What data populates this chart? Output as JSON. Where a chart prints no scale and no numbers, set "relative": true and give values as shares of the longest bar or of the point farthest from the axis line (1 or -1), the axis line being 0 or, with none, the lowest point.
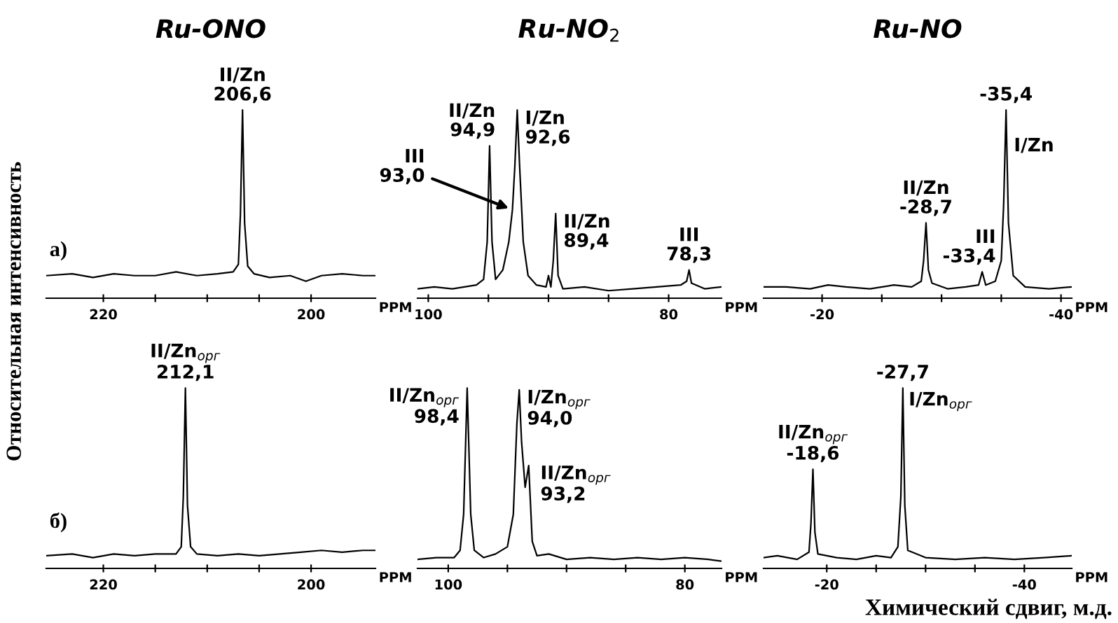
{
  "chart_data": [
    {
      "type": "line",
      "title": "Ru-ONO",
      "ylabel": "Относительная интенсивность",
      "xlabel": "PPM",
      "relative": true,
      "color": "#000000",
      "xlim": [
        225.5,
        193.8
      ],
      "xticks": [
        220,
        {
          "value": 215,
          "label": null
        },
        {
          "value": 210,
          "label": null
        },
        {
          "value": 205,
          "label": null
        },
        200
      ],
      "x": [
        225.5,
        223,
        221,
        219,
        217,
        215,
        213,
        211,
        209,
        207.5,
        207,
        206.8,
        206.6,
        206.4,
        206.1,
        205.5,
        204,
        202,
        200.5,
        199,
        197,
        195,
        193.8
      ],
      "values": [
        0.12,
        0.13,
        0.11,
        0.13,
        0.12,
        0.12,
        0.14,
        0.12,
        0.13,
        0.14,
        0.18,
        0.45,
        1.0,
        0.4,
        0.17,
        0.13,
        0.11,
        0.12,
        0.09,
        0.12,
        0.13,
        0.12,
        0.12
      ],
      "annotations": [
        {
          "text": "II/Zn\n206,6",
          "x": 206.6,
          "y": 1.0
        },
        "а)"
      ]
    },
    {
      "type": "line",
      "title": "Ru-NO$_{2}$",
      "xlabel": "PPM",
      "relative": true,
      "color": "#000000",
      "xlim": [
        100.9,
        75.6
      ],
      "xticks": [
        100,
        {
          "value": 95,
          "label": null
        },
        {
          "value": 90,
          "label": null
        },
        {
          "value": 85,
          "label": null
        },
        80
      ],
      "x": [
        100.9,
        99.5,
        98,
        97,
        96,
        95.4,
        95.1,
        94.9,
        94.7,
        94.4,
        93.8,
        93.3,
        93.0,
        92.8,
        92.6,
        92.4,
        92.1,
        91.7,
        91,
        90.2,
        90.0,
        89.8,
        89.6,
        89.4,
        89.2,
        88.8,
        87,
        85,
        83,
        81,
        79,
        78.5,
        78.3,
        78.1,
        77,
        75.6
      ],
      "values": [
        0.05,
        0.06,
        0.05,
        0.06,
        0.07,
        0.1,
        0.3,
        0.81,
        0.3,
        0.1,
        0.15,
        0.3,
        0.47,
        0.7,
        1.0,
        0.7,
        0.3,
        0.12,
        0.07,
        0.06,
        0.12,
        0.06,
        0.2,
        0.45,
        0.12,
        0.05,
        0.06,
        0.04,
        0.05,
        0.06,
        0.07,
        0.09,
        0.15,
        0.08,
        0.05,
        0.06
      ],
      "annotations": [
        {
          "text": "II/Zn\n94,9",
          "x": 94.9,
          "y": 0.81
        },
        {
          "text": "I/Zn\n92,6",
          "x": 92.6,
          "y": 1.0
        },
        {
          "text": "III\n93,0",
          "x": 93.0,
          "y": 0.47
        },
        {
          "text": "II/Zn\n89,4",
          "x": 89.4,
          "y": 0.45
        },
        {
          "text": "III\n78,3",
          "x": 78.3,
          "y": 0.15
        }
      ]
    },
    {
      "type": "line",
      "title": "Ru-NO",
      "xlabel": "PPM",
      "relative": true,
      "color": "#000000",
      "xlim": [
        -15.1,
        -40.9
      ],
      "xticks": [
        -20,
        {
          "value": -25,
          "label": null
        },
        {
          "value": -30,
          "label": null
        },
        {
          "value": -35,
          "label": null
        },
        -40
      ],
      "x": [
        -15.1,
        -17,
        -19,
        -20.5,
        -22,
        -24,
        -26,
        -27.5,
        -28.3,
        -28.5,
        -28.7,
        -28.9,
        -29.2,
        -30.5,
        -32,
        -33.1,
        -33.4,
        -33.7,
        -34.5,
        -35.0,
        -35.2,
        -35.4,
        -35.6,
        -36.0,
        -37,
        -39,
        -40.9
      ],
      "values": [
        0.06,
        0.06,
        0.05,
        0.07,
        0.06,
        0.05,
        0.07,
        0.06,
        0.09,
        0.2,
        0.4,
        0.15,
        0.08,
        0.05,
        0.06,
        0.07,
        0.14,
        0.07,
        0.09,
        0.2,
        0.5,
        1.0,
        0.4,
        0.12,
        0.06,
        0.05,
        0.06
      ],
      "annotations": [
        {
          "text": "II/Zn\n-28,7",
          "x": -28.7,
          "y": 0.4
        },
        {
          "text": "III\n-33,4",
          "x": -33.4,
          "y": 0.14
        },
        {
          "text": "-35,4",
          "x": -35.4,
          "y": 1.0
        },
        {
          "text": "I/Zn",
          "x": -35.4,
          "y": 1.0
        }
      ]
    },
    {
      "type": "line",
      "xlabel": "PPM",
      "relative": true,
      "color": "#000000",
      "xlim": [
        225.5,
        193.8
      ],
      "xticks": [
        220,
        {
          "value": 215,
          "label": null
        },
        {
          "value": 210,
          "label": null
        },
        {
          "value": 205,
          "label": null
        },
        200
      ],
      "x": [
        225.5,
        223,
        221,
        219,
        217,
        215,
        213,
        212.5,
        212.3,
        212.1,
        211.9,
        211.6,
        211,
        209,
        207,
        205,
        203,
        201,
        199,
        197,
        195,
        193.8
      ],
      "values": [
        0.07,
        0.08,
        0.06,
        0.08,
        0.07,
        0.08,
        0.08,
        0.12,
        0.4,
        1.0,
        0.35,
        0.12,
        0.08,
        0.07,
        0.08,
        0.07,
        0.08,
        0.09,
        0.1,
        0.09,
        0.1,
        0.1
      ],
      "annotations": [
        {
          "text": "II/Zn$_{орг}$\n212,1",
          "x": 212.1,
          "y": 1.0
        },
        "б)"
      ]
    },
    {
      "type": "line",
      "xlabel": "PPM",
      "relative": true,
      "color": "#000000",
      "xlim": [
        102.6,
        76.9
      ],
      "xticks": [
        100,
        {
          "value": 95,
          "label": null
        },
        {
          "value": 90,
          "label": null
        },
        {
          "value": 85,
          "label": null
        },
        80
      ],
      "x": [
        102.6,
        101,
        99.5,
        99,
        98.7,
        98.4,
        98.1,
        97.8,
        97,
        96,
        95,
        94.5,
        94.2,
        94.0,
        93.8,
        93.5,
        93.2,
        92.9,
        92.5,
        91.5,
        90,
        88,
        86,
        84,
        82,
        80,
        78,
        76.9
      ],
      "values": [
        0.05,
        0.06,
        0.06,
        0.1,
        0.3,
        1.0,
        0.3,
        0.1,
        0.06,
        0.08,
        0.12,
        0.3,
        0.8,
        0.99,
        0.7,
        0.45,
        0.57,
        0.15,
        0.07,
        0.08,
        0.05,
        0.06,
        0.05,
        0.06,
        0.05,
        0.06,
        0.05,
        0.04
      ],
      "annotations": [
        {
          "text": "II/Zn$_{орг}$\n98,4",
          "x": 98.4,
          "y": 1.0
        },
        {
          "text": "I/Zn$_{орг}$\n94,0",
          "x": 94.0,
          "y": 0.99
        },
        {
          "text": "II/Zn$_{орг}$\n93,2",
          "x": 93.2,
          "y": 0.57
        }
      ]
    },
    {
      "type": "line",
      "xlabel": "PPM",
      "relative": true,
      "color": "#000000",
      "xlim": [
        -13.6,
        -44.8
      ],
      "xticks": [
        -20,
        {
          "value": -25,
          "label": null
        },
        {
          "value": -30,
          "label": null
        },
        {
          "value": -35,
          "label": null
        },
        -40
      ],
      "x": [
        -13.6,
        -15,
        -17,
        -18.2,
        -18.4,
        -18.6,
        -18.8,
        -19.1,
        -21,
        -23,
        -25,
        -26.5,
        -27.2,
        -27.5,
        -27.7,
        -27.9,
        -28.2,
        -30,
        -33,
        -36,
        -39,
        -42,
        -44.8
      ],
      "values": [
        0.06,
        0.07,
        0.05,
        0.09,
        0.25,
        0.55,
        0.2,
        0.08,
        0.06,
        0.05,
        0.07,
        0.06,
        0.12,
        0.4,
        1.0,
        0.35,
        0.1,
        0.06,
        0.05,
        0.06,
        0.05,
        0.06,
        0.07
      ],
      "annotations": [
        {
          "text": "II/Zn$_{орг}$\n-18,6",
          "x": -18.6,
          "y": 0.55
        },
        {
          "text": "-27,7",
          "x": -27.7,
          "y": 1.0
        },
        {
          "text": "I/Zn$_{орг}$",
          "x": -27.7,
          "y": 1.0
        },
        "Химический сдвиг, м.д."
      ]
    }
  ]
}
